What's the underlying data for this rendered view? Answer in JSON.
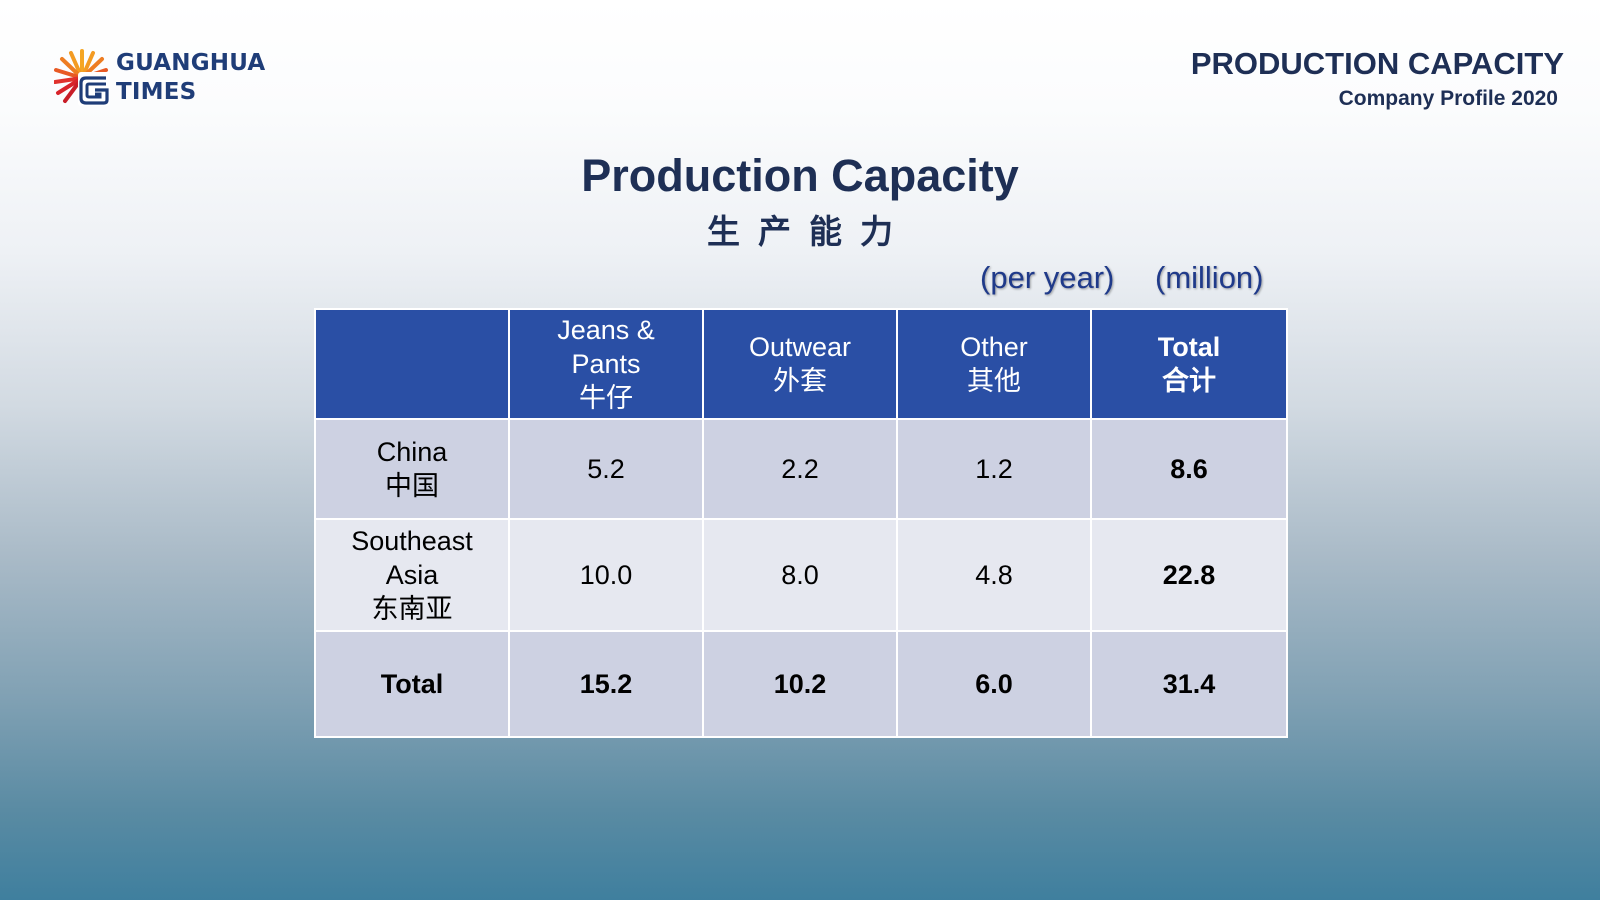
{
  "logo": {
    "line1": "GUANGHUA",
    "line2": "TIMES",
    "icon": "sunburst-g-logo-icon"
  },
  "header": {
    "title": "PRODUCTION CAPACITY",
    "subtitle": "Company Profile 2020"
  },
  "page": {
    "title": "Production Capacity",
    "subtitle_cn": "生产能力"
  },
  "units": {
    "per_year": "(per year)",
    "million": "(million)"
  },
  "table": {
    "columns": [
      {
        "lines": [
          ""
        ]
      },
      {
        "lines": [
          "Jeans &",
          "Pants",
          "牛仔"
        ]
      },
      {
        "lines": [
          "Outwear",
          "外套"
        ]
      },
      {
        "lines": [
          "Other",
          "其他"
        ]
      },
      {
        "lines": [
          "Total",
          "合计"
        ]
      }
    ],
    "rows": [
      {
        "label_lines": [
          "China",
          "中国"
        ],
        "cells": [
          "5.2",
          "2.2",
          "1.2",
          "8.6"
        ]
      },
      {
        "label_lines": [
          "Southeast",
          "Asia",
          "东南亚"
        ],
        "cells": [
          "10.0",
          "8.0",
          "4.8",
          "22.8"
        ]
      },
      {
        "label_lines": [
          "Total"
        ],
        "cells": [
          "15.2",
          "10.2",
          "6.0",
          "31.4"
        ]
      }
    ]
  },
  "colors": {
    "header_fill": "#2a4fa5",
    "row_dark": "#cdd1e2",
    "row_light": "#e6e8f0",
    "title_text": "#1e2f55",
    "unit_text": "#1f3a8a",
    "logo_text": "#1f3d78",
    "logo_rays": "#e0322d"
  }
}
